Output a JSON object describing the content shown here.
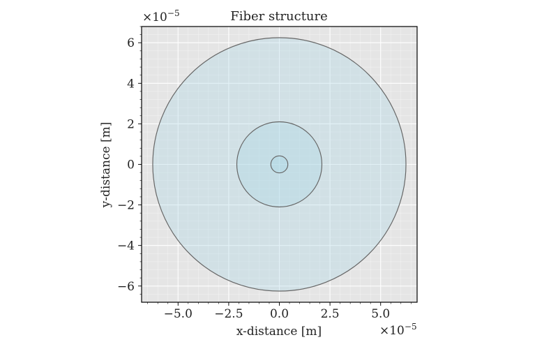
{
  "chart_data": {
    "type": "scatter",
    "title": "Fiber structure",
    "xlabel": "x-distance [m]",
    "ylabel": "y-distance [m]",
    "xlim": [
      -6.8e-05,
      6.8e-05
    ],
    "ylim": [
      -6.8e-05,
      6.8e-05
    ],
    "x_ticks": [
      -5.0,
      -2.5,
      0.0,
      2.5,
      5.0
    ],
    "x_tick_labels": [
      "−5.0",
      "−2.5",
      "0.0",
      "2.5",
      "5.0"
    ],
    "y_ticks": [
      -6,
      -4,
      -2,
      0,
      2,
      4,
      6
    ],
    "y_tick_labels": [
      "−6",
      "−4",
      "−2",
      "0",
      "2",
      "4",
      "6"
    ],
    "x_scale_label": {
      "base": "×10",
      "exp": "−5"
    },
    "y_scale_label": {
      "base": "×10",
      "exp": "−5"
    },
    "multiplier": 1e-05,
    "grid": true,
    "colors": {
      "axes_background": "#e5e5e5",
      "grid": "#ffffff",
      "circle_fill": "#add8e6",
      "circle_edge": "#666666"
    },
    "circles": [
      {
        "center": [
          0,
          0
        ],
        "radius": 6.25e-05
      },
      {
        "center": [
          0,
          0
        ],
        "radius": 2.1e-05
      },
      {
        "center": [
          0,
          0
        ],
        "radius": 4.2e-06
      }
    ]
  }
}
